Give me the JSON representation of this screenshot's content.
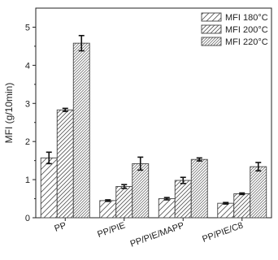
{
  "chart_data": {
    "type": "bar",
    "title": "",
    "xlabel": "",
    "ylabel": "MFI (g/10min)",
    "ylim": [
      0,
      5.5
    ],
    "yticks": [
      0,
      1,
      2,
      3,
      4,
      5
    ],
    "grid": false,
    "legend_position": "top-right",
    "categories": [
      "PP",
      "PP/PIE",
      "PP/PIE/MAPP",
      "PP/PIE/C8"
    ],
    "series": [
      {
        "name": "MFI 180°C",
        "values": [
          1.57,
          0.45,
          0.5,
          0.38
        ],
        "errors": [
          0.15,
          0.02,
          0.03,
          0.02
        ],
        "pattern": "hatch-sparse"
      },
      {
        "name": "MFI 200°C",
        "values": [
          2.83,
          0.82,
          0.98,
          0.63
        ],
        "errors": [
          0.04,
          0.05,
          0.08,
          0.02
        ],
        "pattern": "hatch-medium"
      },
      {
        "name": "MFI 220°C",
        "values": [
          4.58,
          1.42,
          1.53,
          1.34
        ],
        "errors": [
          0.2,
          0.17,
          0.04,
          0.11
        ],
        "pattern": "hatch-dense"
      }
    ]
  }
}
